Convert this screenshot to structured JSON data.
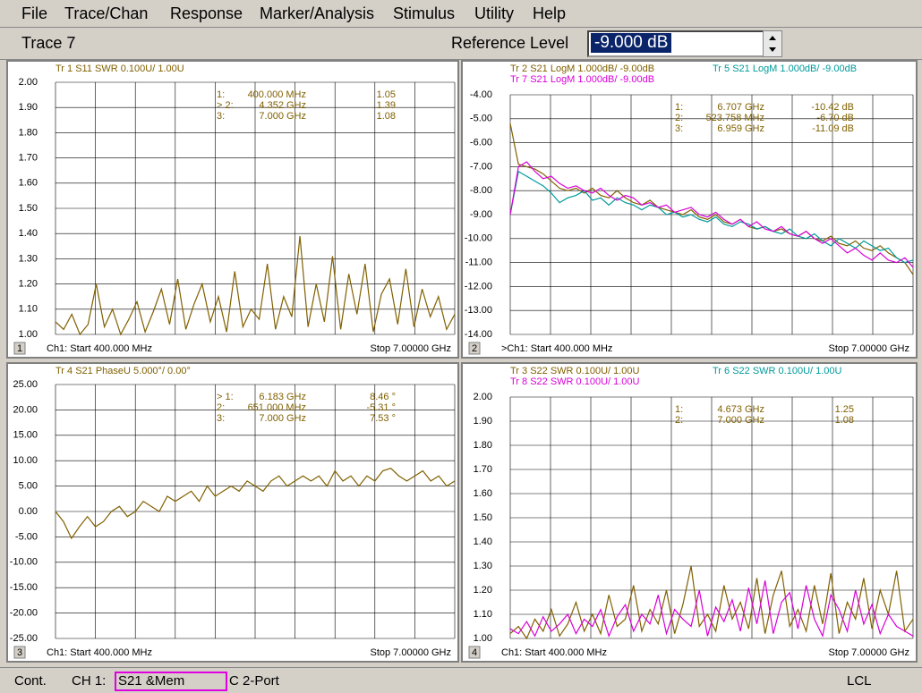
{
  "menu": [
    "File",
    "Trace/Chan",
    "Response",
    "Marker/Analysis",
    "Stimulus",
    "Utility",
    "Help"
  ],
  "toolbar": {
    "active_trace": "Trace 7",
    "label": "Reference Level",
    "value": "-9.000 dB"
  },
  "windows": [
    {
      "number": "1",
      "ylim": [
        1.0,
        2.0
      ],
      "yticks": [
        {
          "value": 2.0,
          "label": "2.00"
        },
        {
          "value": 1.9,
          "label": "1.90"
        },
        {
          "value": 1.8,
          "label": "1.80"
        },
        {
          "value": 1.7,
          "label": "1.70"
        },
        {
          "value": 1.6,
          "label": "1.60"
        },
        {
          "value": 1.5,
          "label": "1.50"
        },
        {
          "value": 1.4,
          "label": "1.40"
        },
        {
          "value": 1.3,
          "label": "1.30"
        },
        {
          "value": 1.2,
          "label": "1.20"
        },
        {
          "value": 1.1,
          "label": "1.10"
        },
        {
          "value": 1.0,
          "label": "1.00"
        }
      ],
      "traces": [
        {
          "label": "Tr 1  S11 SWR 0.100U/  1.00U",
          "color": "#806000",
          "values": [
            1.05,
            1.02,
            1.08,
            1.0,
            1.04,
            1.2,
            1.03,
            1.1,
            1.0,
            1.06,
            1.13,
            1.01,
            1.09,
            1.18,
            1.04,
            1.22,
            1.02,
            1.12,
            1.2,
            1.05,
            1.15,
            1.01,
            1.25,
            1.03,
            1.1,
            1.06,
            1.28,
            1.02,
            1.15,
            1.07,
            1.39,
            1.03,
            1.2,
            1.05,
            1.31,
            1.02,
            1.24,
            1.08,
            1.28,
            1.01,
            1.16,
            1.22,
            1.04,
            1.26,
            1.03,
            1.18,
            1.07,
            1.15,
            1.02,
            1.08
          ]
        }
      ],
      "markers": [
        [
          "1:",
          "400.000 MHz",
          "1.05"
        ],
        [
          "> 2:",
          "4.352 GHz",
          "1.39"
        ],
        [
          "3:",
          "7.000 GHz",
          "1.08"
        ]
      ],
      "start": "Ch1: Start  400.000 MHz",
      "stop": "Stop  7.00000 GHz"
    },
    {
      "number": "2",
      "ylim": [
        -14.0,
        -4.0
      ],
      "yticks": [
        {
          "value": -4,
          "label": "-4.00"
        },
        {
          "value": -5,
          "label": "-5.00"
        },
        {
          "value": -6,
          "label": "-6.00"
        },
        {
          "value": -7,
          "label": "-7.00"
        },
        {
          "value": -8,
          "label": "-8.00"
        },
        {
          "value": -9,
          "label": "-9.00"
        },
        {
          "value": -10,
          "label": "-10.00"
        },
        {
          "value": -11,
          "label": "-11.00"
        },
        {
          "value": -12,
          "label": "-12.00"
        },
        {
          "value": -13,
          "label": "-13.00"
        },
        {
          "value": -14,
          "label": "-14.00"
        }
      ],
      "traces": [
        {
          "label": "Tr  2  S21 LogM 1.000dB/ -9.00dB",
          "color": "#806000",
          "values": [
            -5.2,
            -6.9,
            -7.0,
            -7.1,
            -7.3,
            -7.6,
            -7.9,
            -8.0,
            -7.9,
            -8.1,
            -7.9,
            -8.2,
            -8.3,
            -8.0,
            -8.3,
            -8.5,
            -8.6,
            -8.4,
            -8.7,
            -8.8,
            -8.9,
            -9.0,
            -8.8,
            -9.1,
            -9.2,
            -9.0,
            -9.3,
            -9.4,
            -9.2,
            -9.5,
            -9.6,
            -9.5,
            -9.7,
            -9.6,
            -9.8,
            -9.9,
            -9.7,
            -10.0,
            -10.1,
            -9.9,
            -10.2,
            -10.3,
            -10.1,
            -10.4,
            -10.5,
            -10.3,
            -10.6,
            -10.8,
            -11.0,
            -11.5
          ]
        },
        {
          "label": "Tr  5  S21 LogM 1.000dB/ -9.00dB",
          "color": "#009a9a",
          "values": [
            -9.0,
            -7.2,
            -7.4,
            -7.6,
            -7.8,
            -8.1,
            -8.5,
            -8.3,
            -8.2,
            -8.0,
            -8.4,
            -8.3,
            -8.6,
            -8.3,
            -8.5,
            -8.6,
            -8.8,
            -8.6,
            -8.7,
            -9.0,
            -8.9,
            -9.1,
            -9.0,
            -9.2,
            -9.3,
            -9.1,
            -9.4,
            -9.5,
            -9.3,
            -9.4,
            -9.6,
            -9.5,
            -9.7,
            -9.8,
            -9.6,
            -9.9,
            -10.0,
            -9.8,
            -10.1,
            -10.3,
            -10.0,
            -10.2,
            -10.4,
            -10.1,
            -10.3,
            -10.5,
            -10.4,
            -10.8,
            -11.0,
            -10.9
          ]
        },
        {
          "label": "Tr  7  S21 LogM 1.000dB/ -9.00dB",
          "color": "#d800d8",
          "values": [
            -9.0,
            -7.0,
            -6.8,
            -7.2,
            -7.5,
            -7.4,
            -7.7,
            -7.9,
            -7.8,
            -8.0,
            -8.1,
            -7.9,
            -8.2,
            -8.4,
            -8.2,
            -8.3,
            -8.6,
            -8.5,
            -8.7,
            -8.6,
            -8.9,
            -8.8,
            -8.7,
            -9.0,
            -9.1,
            -8.9,
            -9.2,
            -9.4,
            -9.2,
            -9.5,
            -9.3,
            -9.6,
            -9.7,
            -9.5,
            -9.8,
            -9.9,
            -9.7,
            -10.0,
            -10.2,
            -10.0,
            -10.3,
            -10.6,
            -10.4,
            -10.7,
            -10.9,
            -10.6,
            -10.9,
            -11.0,
            -10.8,
            -11.2
          ]
        }
      ],
      "markers": [
        [
          "1:",
          "6.707 GHz",
          "-10.42 dB"
        ],
        [
          "2:",
          "523.758 MHz",
          "-6.70 dB"
        ],
        [
          "3:",
          "6.959 GHz",
          "-11.09 dB"
        ]
      ],
      "start": ">Ch1: Start  400.000 MHz",
      "stop": "Stop  7.00000 GHz"
    },
    {
      "number": "3",
      "ylim": [
        -25.0,
        25.0
      ],
      "yticks": [
        {
          "value": 25,
          "label": "25.00"
        },
        {
          "value": 20,
          "label": "20.00"
        },
        {
          "value": 15,
          "label": "15.00"
        },
        {
          "value": 10,
          "label": "10.00"
        },
        {
          "value": 5,
          "label": "5.00"
        },
        {
          "value": 0,
          "label": "0.00"
        },
        {
          "value": -5,
          "label": "-5.00"
        },
        {
          "value": -10,
          "label": "-10.00"
        },
        {
          "value": -15,
          "label": "-15.00"
        },
        {
          "value": -20,
          "label": "-20.00"
        },
        {
          "value": -25,
          "label": "-25.00"
        }
      ],
      "traces": [
        {
          "label": "Tr  4  S21 PhaseU 5.000°/  0.00°",
          "color": "#806000",
          "values": [
            0,
            -2,
            -5.3,
            -3,
            -1,
            -3,
            -2,
            0,
            1,
            -1,
            0,
            2,
            1,
            0,
            3,
            2,
            3,
            4,
            2,
            5,
            3,
            4,
            5,
            4,
            6,
            5,
            4,
            6,
            7,
            5,
            6,
            7,
            6,
            7,
            5,
            8,
            6,
            7,
            5,
            7,
            6,
            8,
            8.5,
            7,
            6,
            7,
            8,
            6,
            7,
            5,
            6
          ]
        }
      ],
      "markers": [
        [
          "> 1:",
          "6.183 GHz",
          "8.46 °"
        ],
        [
          "2:",
          "651.000 MHz",
          "-5.31 °"
        ],
        [
          "3:",
          "7.000 GHz",
          "7.53 °"
        ]
      ],
      "start": "Ch1: Start  400.000 MHz",
      "stop": "Stop  7.00000 GHz"
    },
    {
      "number": "4",
      "ylim": [
        1.0,
        2.0
      ],
      "yticks": [
        {
          "value": 2.0,
          "label": "2.00"
        },
        {
          "value": 1.9,
          "label": "1.90"
        },
        {
          "value": 1.8,
          "label": "1.80"
        },
        {
          "value": 1.7,
          "label": "1.70"
        },
        {
          "value": 1.6,
          "label": "1.60"
        },
        {
          "value": 1.5,
          "label": "1.50"
        },
        {
          "value": 1.4,
          "label": "1.40"
        },
        {
          "value": 1.3,
          "label": "1.30"
        },
        {
          "value": 1.2,
          "label": "1.20"
        },
        {
          "value": 1.1,
          "label": "1.10"
        },
        {
          "value": 1.0,
          "label": "1.00"
        }
      ],
      "traces": [
        {
          "label": "Tr  3  S22 SWR 0.100U/  1.00U",
          "color": "#806000",
          "values": [
            1.02,
            1.05,
            1.0,
            1.08,
            1.03,
            1.12,
            1.01,
            1.06,
            1.15,
            1.03,
            1.1,
            1.02,
            1.18,
            1.05,
            1.08,
            1.22,
            1.03,
            1.12,
            1.06,
            1.2,
            1.02,
            1.14,
            1.3,
            1.05,
            1.1,
            1.03,
            1.22,
            1.08,
            1.15,
            1.04,
            1.25,
            1.02,
            1.18,
            1.28,
            1.05,
            1.12,
            1.03,
            1.22,
            1.06,
            1.27,
            1.02,
            1.15,
            1.08,
            1.25,
            1.04,
            1.2,
            1.1,
            1.28,
            1.03,
            1.08
          ]
        },
        {
          "label": "Tr  6  S22 SWR 0.100U/  1.00U",
          "color": "#009a9a"
        },
        {
          "label": "Tr  8  S22 SWR 0.100U/  1.00U",
          "color": "#d800d8",
          "values": [
            1.04,
            1.02,
            1.07,
            1.01,
            1.09,
            1.03,
            1.06,
            1.1,
            1.02,
            1.08,
            1.05,
            1.12,
            1.01,
            1.09,
            1.14,
            1.03,
            1.1,
            1.06,
            1.18,
            1.02,
            1.12,
            1.08,
            1.05,
            1.2,
            1.01,
            1.13,
            1.07,
            1.16,
            1.03,
            1.21,
            1.06,
            1.24,
            1.02,
            1.15,
            1.19,
            1.04,
            1.22,
            1.08,
            1.01,
            1.18,
            1.12,
            1.03,
            1.2,
            1.06,
            1.14,
            1.02,
            1.1,
            1.05,
            1.03,
            1.01
          ]
        }
      ],
      "markers": [
        [
          "1:",
          "4.673 GHz",
          "1.25"
        ],
        [
          "2:",
          "7.000 GHz",
          "1.08"
        ]
      ],
      "start": "Ch1: Start  400.000 MHz",
      "stop": "Stop  7.00000 GHz"
    }
  ],
  "status": {
    "mode": "Cont.",
    "channel": "CH 1:",
    "measurement": "S21 &Mem",
    "cal": "C  2-Port",
    "remote": "LCL"
  }
}
